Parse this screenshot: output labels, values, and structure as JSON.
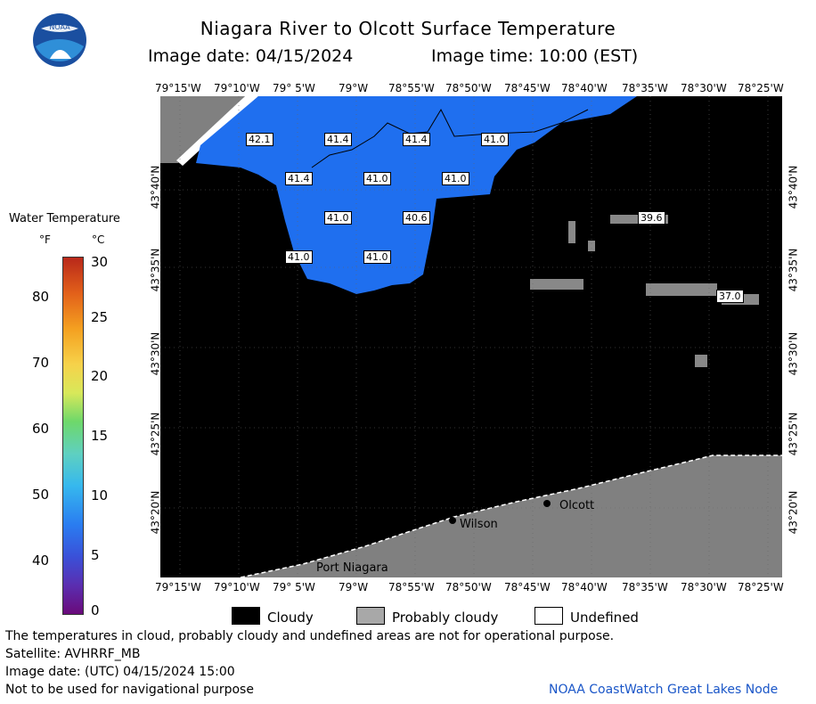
{
  "header": {
    "title": "Niagara River to Olcott Surface Temperature",
    "subtitle_date": "Image date: 04/15/2024",
    "subtitle_time": "Image time: 10:00 (EST)"
  },
  "logo": {
    "text": "NOAA"
  },
  "colorbar": {
    "title": "Water Temperature",
    "unit_f": "°F",
    "unit_c": "°C",
    "f_ticks": [
      "80",
      "70",
      "60",
      "50",
      "40"
    ],
    "c_ticks": [
      "30",
      "25",
      "20",
      "15",
      "10",
      "5",
      "0"
    ]
  },
  "map": {
    "lon_labels": [
      "79°15'W",
      "79°10'W",
      "79° 5'W",
      "79°W",
      "78°55'W",
      "78°50'W",
      "78°45'W",
      "78°40'W",
      "78°35'W",
      "78°30'W",
      "78°25'W"
    ],
    "lat_labels": [
      "43°40'N",
      "43°35'N",
      "43°30'N",
      "43°25'N",
      "43°20'N"
    ],
    "temperature_labels": [
      "42.1",
      "41.4",
      "41.4",
      "41.0",
      "41.4",
      "41.0",
      "41.0",
      "41.0",
      "40.6",
      "41.0",
      "41.0",
      "39.6",
      "37.0"
    ],
    "places": [
      "Port Niagara",
      "Wilson",
      "Olcott"
    ],
    "colors": {
      "cloudy": "#000000",
      "probably_cloudy": "#808080",
      "undefined": "#ffffff",
      "water": "#1f6fef"
    }
  },
  "legend": {
    "cloudy": "Cloudy",
    "probably_cloudy": "Probably cloudy",
    "undefined": "Undefined"
  },
  "footer": {
    "line1": "The temperatures in cloud, probably cloudy and undefined areas are not for operational purpose.",
    "line2": "Satellite: AVHRRF_MB",
    "line3": "Image date: (UTC) 04/15/2024  15:00",
    "line4": "Not to be used for navigational purpose",
    "credit": "NOAA CoastWatch Great Lakes Node"
  }
}
